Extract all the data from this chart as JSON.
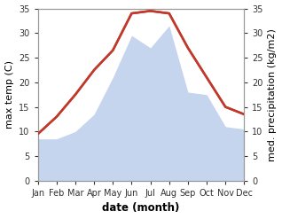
{
  "months": [
    "Jan",
    "Feb",
    "Mar",
    "Apr",
    "May",
    "Jun",
    "Jul",
    "Aug",
    "Sep",
    "Oct",
    "Nov",
    "Dec"
  ],
  "temperature": [
    9.5,
    13.0,
    17.5,
    22.5,
    26.5,
    34.0,
    34.5,
    34.0,
    27.0,
    21.0,
    15.0,
    13.5
  ],
  "precipitation": [
    8.5,
    8.5,
    10.0,
    13.5,
    21.0,
    29.5,
    27.0,
    31.5,
    18.0,
    17.5,
    11.0,
    10.5
  ],
  "temp_color": "#c0392b",
  "precip_color": "#c5d5ee",
  "ylim": [
    0,
    35
  ],
  "yticks": [
    0,
    5,
    10,
    15,
    20,
    25,
    30,
    35
  ],
  "ylabel_left": "max temp (C)",
  "ylabel_right": "med. precipitation (kg/m2)",
  "xlabel": "date (month)",
  "bg_color": "#ffffff",
  "spine_color": "#999999",
  "tick_color": "#333333",
  "font_size_ticks": 7,
  "xlabel_fontsize": 8.5,
  "ylabel_fontsize": 8
}
